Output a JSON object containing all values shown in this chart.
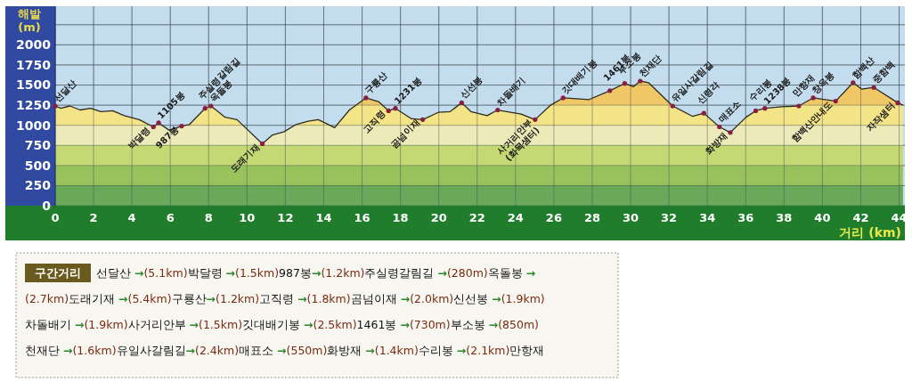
{
  "chart_data": {
    "type": "area",
    "xlabel": "거리 (km)",
    "ylabel": "해발 (m)",
    "xlim": [
      0,
      44.3
    ],
    "ylim": [
      0,
      2480
    ],
    "xticks": [
      0,
      2,
      4,
      6,
      8,
      10,
      12,
      14,
      16,
      18,
      20,
      22,
      24,
      26,
      28,
      30,
      32,
      34,
      36,
      38,
      40,
      42,
      44
    ],
    "yticks": [
      0,
      250,
      500,
      750,
      1000,
      1250,
      1500,
      1750,
      2000,
      {
        "value": 2250,
        "label": null
      }
    ],
    "grid": true,
    "marker": "none",
    "line_style": "solid",
    "series": [
      {
        "color": "#f3e487",
        "x": [
          0,
          0.3,
          0.76,
          1.3,
          1.84,
          2.38,
          3.0,
          3.6,
          4.38,
          5.12,
          5.39,
          5.93,
          6.2,
          6.59,
          7.0,
          7.81,
          8.12,
          8.86,
          9.48,
          10.8,
          11.33,
          11.94,
          12.56,
          13.18,
          13.72,
          14.57,
          15.34,
          16.2,
          16.88,
          17.38,
          17.74,
          18.58,
          19.16,
          19.97,
          20.59,
          21.19,
          21.67,
          22.52,
          23.07,
          24.29,
          25.02,
          25.83,
          26.48,
          27.84,
          28.92,
          29.69,
          30.15,
          30.5,
          30.93,
          32.19,
          33.24,
          33.82,
          34.63,
          35.2,
          36.02,
          36.52,
          37.0,
          37.88,
          38.77,
          39.52,
          40.69,
          41.6,
          42.04,
          42.68,
          43.93,
          44.2
        ],
        "values": [
          1240,
          1210,
          1240,
          1190,
          1210,
          1170,
          1180,
          1120,
          1070,
          980,
          1030,
          940,
          960,
          990,
          1010,
          1210,
          1240,
          1100,
          1070,
          770,
          880,
          920,
          1010,
          1050,
          1070,
          970,
          1190,
          1340,
          1290,
          1180,
          1210,
          1080,
          1070,
          1160,
          1170,
          1280,
          1170,
          1120,
          1190,
          1140,
          1070,
          1250,
          1340,
          1320,
          1430,
          1520,
          1480,
          1550,
          1530,
          1240,
          1110,
          1150,
          980,
          910,
          1100,
          1180,
          1210,
          1230,
          1240,
          1340,
          1300,
          1530,
          1450,
          1470,
          1280,
          1250
        ]
      }
    ],
    "annotations": [
      {
        "text": "선달산",
        "x": 0,
        "y": 1240
      },
      {
        "text": "박달령",
        "x": 5.12,
        "y": 980
      },
      {
        "text": "1105봉",
        "x": 5.39,
        "y": 1030
      },
      {
        "text": "987봉",
        "x": 6.59,
        "y": 990
      },
      {
        "text": "주실령갈림길",
        "x": 7.81,
        "y": 1210
      },
      {
        "text": "옥돌봉",
        "x": 8.12,
        "y": 1240
      },
      {
        "text": "도래기재",
        "x": 10.8,
        "y": 770
      },
      {
        "text": "구룡산",
        "x": 16.2,
        "y": 1340
      },
      {
        "text": "고직령",
        "x": 17.38,
        "y": 1180
      },
      {
        "text": "1231봉",
        "x": 17.74,
        "y": 1210
      },
      {
        "text": "곰넘이재",
        "x": 19.16,
        "y": 1070
      },
      {
        "text": "신선봉",
        "x": 21.19,
        "y": 1280
      },
      {
        "text": "차돌배기",
        "x": 23.07,
        "y": 1190
      },
      {
        "text": "사거리안부\n(화목샘터)",
        "x": 25.02,
        "y": 1070
      },
      {
        "text": "깃대배기봉",
        "x": 26.48,
        "y": 1340
      },
      {
        "text": "1461봉",
        "x": 28.92,
        "y": 1430
      },
      {
        "text": "부소봉",
        "x": 29.69,
        "y": 1520
      },
      {
        "text": "천재단",
        "x": 30.5,
        "y": 1550
      },
      {
        "text": "유일사갈림길",
        "x": 32.19,
        "y": 1240
      },
      {
        "text": "신령각",
        "x": 33.82,
        "y": 1150
      },
      {
        "text": "매표소",
        "x": 34.63,
        "y": 980
      },
      {
        "text": "화방재",
        "x": 35.2,
        "y": 910
      },
      {
        "text": "수리봉",
        "x": 36.52,
        "y": 1180
      },
      {
        "text": "1238봉",
        "x": 37.0,
        "y": 1210
      },
      {
        "text": "만항재",
        "x": 38.77,
        "y": 1240
      },
      {
        "text": "창옥봉",
        "x": 39.52,
        "y": 1340
      },
      {
        "text": "함백산안내도",
        "x": 40.69,
        "y": 1300
      },
      {
        "text": "함백산",
        "x": 41.6,
        "y": 1530
      },
      {
        "text": "중함백",
        "x": 42.68,
        "y": 1470
      },
      {
        "text": "자작샘터",
        "x": 43.93,
        "y": 1280
      },
      "구간거리",
      "선달산 →(5.1km)박달령 →(1.5km)987봉→(1.2km)주실령갈림길 →(280m)옥돌봉 →",
      "(2.7km)도래기재 →(5.4km)구룡산→(1.2km)고직령 →(1.8km)곰넘이재 →(2.0km)신선봉 →(1.9km)",
      "차돌배기 →(1.9km)사거리안부 →(1.5km)깃대배기봉 →(2.5km)1461봉 →(730m)부소봉 →(850m)",
      "천재단 →(1.6km)유일사갈림길→(2.4km)매표소 →(550m)화방재 →(1.4km)수리봉 →(2.1km)만항재"
    ]
  }
}
